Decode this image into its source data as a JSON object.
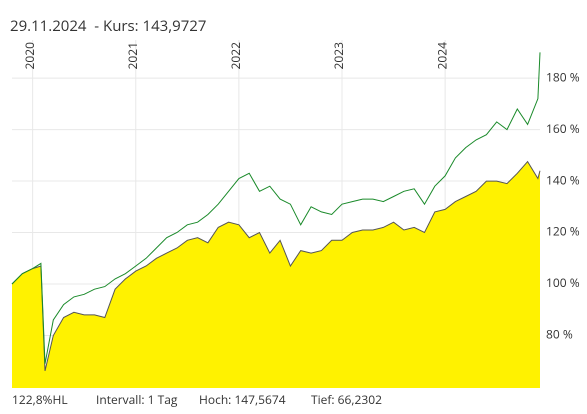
{
  "chart_data": {
    "type": "line",
    "title": "29.11.2024  - Kurs: 143,9727",
    "footer": [
      "122,8%HL",
      "Intervall: 1 Tag",
      "Hoch: 147,5674",
      "Tief: 66,2302"
    ],
    "x": [
      2019.8,
      2019.9,
      2020.0,
      2020.08,
      2020.12,
      2020.2,
      2020.3,
      2020.4,
      2020.5,
      2020.6,
      2020.7,
      2020.8,
      2020.9,
      2021.0,
      2021.1,
      2021.2,
      2021.3,
      2021.4,
      2021.5,
      2021.6,
      2021.7,
      2021.8,
      2021.9,
      2022.0,
      2022.1,
      2022.2,
      2022.3,
      2022.4,
      2022.5,
      2022.6,
      2022.7,
      2022.8,
      2022.9,
      2023.0,
      2023.1,
      2023.2,
      2023.3,
      2023.4,
      2023.5,
      2023.6,
      2023.7,
      2023.8,
      2023.9,
      2024.0,
      2024.1,
      2024.2,
      2024.3,
      2024.4,
      2024.5,
      2024.6,
      2024.7,
      2024.8,
      2024.9,
      2024.92
    ],
    "series": [
      {
        "color": "#555555",
        "area": true,
        "fill_color": "#fff200",
        "values": [
          100,
          104,
          106,
          107,
          66.23,
          80,
          87,
          89,
          88,
          88,
          87,
          98,
          102,
          105,
          107,
          110,
          112,
          114,
          117,
          118,
          116,
          122,
          124,
          123,
          118,
          120,
          112,
          117,
          107,
          113,
          112,
          113,
          117,
          117,
          120,
          121,
          121,
          122,
          124,
          121,
          122,
          120,
          128,
          129,
          132,
          134,
          136,
          140,
          140,
          139,
          143,
          147.57,
          141,
          143.97
        ]
      },
      {
        "color": "#1a8a2a",
        "area": false,
        "values": [
          100,
          104,
          106,
          108,
          69,
          86,
          92,
          95,
          96,
          98,
          99,
          102,
          104,
          107,
          110,
          114,
          118,
          120,
          123,
          124,
          127,
          131,
          136,
          141,
          143,
          136,
          138,
          133,
          131,
          123,
          130,
          128,
          127,
          131,
          132,
          133,
          133,
          132,
          134,
          136,
          137,
          131,
          138,
          142,
          149,
          153,
          156,
          158,
          163,
          160,
          168,
          162,
          172,
          190
        ]
      }
    ],
    "xlim": [
      2019.8,
      2024.92
    ],
    "xticks": [
      2020,
      2021,
      2022,
      2023,
      2024
    ],
    "ylim": [
      59.6,
      194.8
    ],
    "yticks": [
      {
        "value": 80,
        "label": "80 %"
      },
      {
        "value": 100,
        "label": "100 %"
      },
      {
        "value": 120,
        "label": "120 %"
      },
      {
        "value": 140,
        "label": "140 %"
      },
      {
        "value": 160,
        "label": "160 %"
      },
      {
        "value": 180,
        "label": "180 %"
      }
    ],
    "grid": true
  }
}
